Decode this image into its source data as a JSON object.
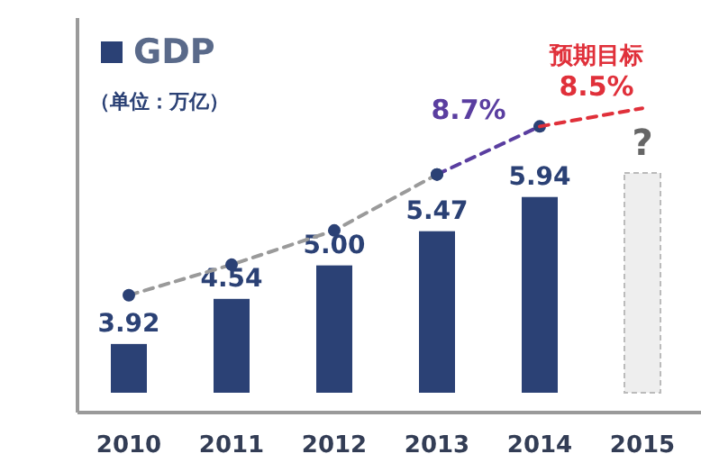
{
  "chart_data": {
    "type": "bar",
    "subtitle": "（单位：万亿）",
    "categories": [
      "2010",
      "2011",
      "2012",
      "2013",
      "2014",
      "2015"
    ],
    "series": [
      {
        "name": "GDP",
        "color": "#2b4175",
        "colors": [
          "#2b4175",
          "#2b4175",
          "#2b4175",
          "#2b4175",
          "#2b4175",
          "#eeeeee"
        ],
        "values": [
          3.92,
          4.54,
          5.0,
          5.47,
          5.94,
          6.27
        ],
        "value_labels": [
          "3.92",
          "4.54",
          "5.00",
          "5.47",
          "5.94",
          "?"
        ]
      },
      {
        "type": "line",
        "color": "#9a9a9a",
        "line_style": "dashed",
        "marker": "circle",
        "values": [
          4.59,
          5.01,
          5.48,
          6.25,
          null,
          null
        ]
      },
      {
        "type": "line",
        "color": "#5a3ea0",
        "line_style": "dashed",
        "marker": "circle",
        "values": [
          null,
          null,
          null,
          6.25,
          6.91,
          null
        ]
      },
      {
        "type": "line",
        "color": "#e0303a",
        "line_style": "dashed",
        "marker": "none",
        "values": [
          null,
          null,
          null,
          null,
          6.91,
          7.16
        ]
      }
    ],
    "annotations": [
      "8.7%",
      "预期目标",
      "8.5%"
    ],
    "ylim": [
      3.25,
      8.4
    ],
    "tick_labels": "x",
    "legend": "top left"
  }
}
